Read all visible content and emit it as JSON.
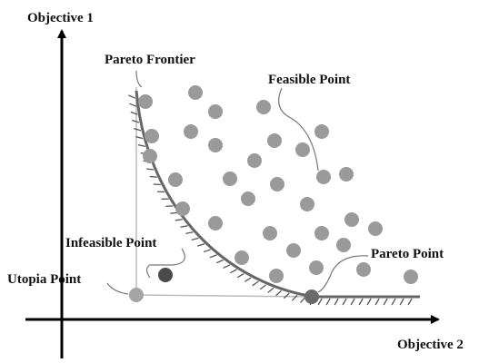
{
  "labels": {
    "y_axis": "Objective 1",
    "x_axis": "Objective 2",
    "pareto_frontier": "Pareto Frontier",
    "feasible_point": "Feasible Point",
    "infeasible_point": "Infeasible Point",
    "utopia_point": "Utopia Point",
    "pareto_point": "Pareto Point"
  }
}
